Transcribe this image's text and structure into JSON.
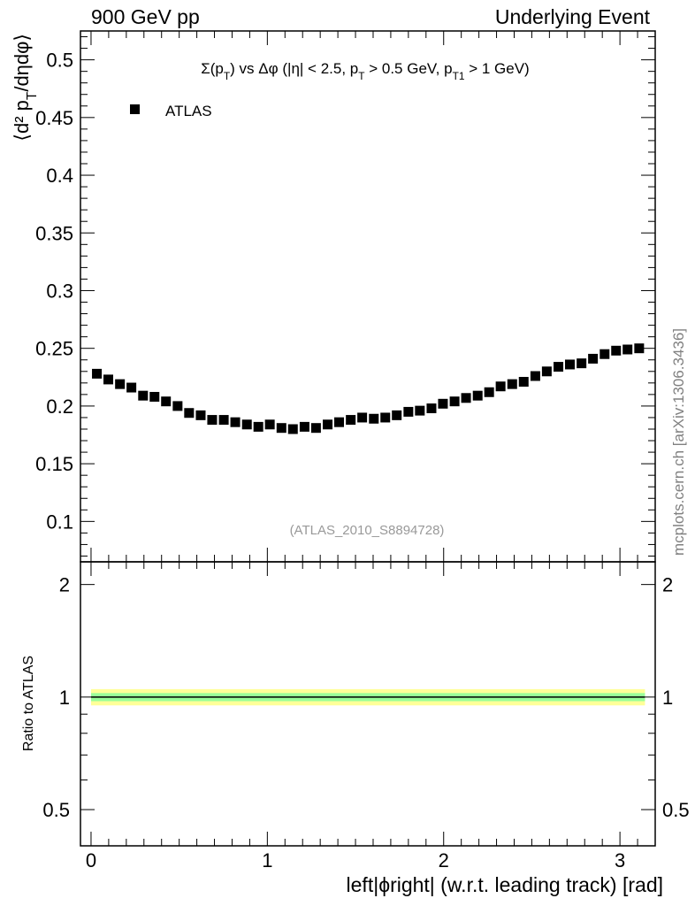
{
  "header": {
    "left": "900 GeV pp",
    "right": "Underlying Event"
  },
  "watermark": "mcplots.cern.ch [arXiv:1306.3436]",
  "chart_data": [
    {
      "type": "scatter",
      "title": "Σ(p_T) vs Δφ (|η| < 2.5, p_T > 0.5 GeV, p_T1 > 1 GeV)",
      "ylabel": "⟨d² p_T/dηdφ⟩",
      "analysis_tag": "(ATLAS_2010_S8894728)",
      "legend": {
        "position": "top-left",
        "entries": [
          "ATLAS"
        ]
      },
      "marker_color": "#000000",
      "xlim": [
        -0.06,
        3.2
      ],
      "ylim": [
        0.065,
        0.525
      ],
      "yticks": [
        0.1,
        0.15,
        0.2,
        0.25,
        0.3,
        0.35,
        0.4,
        0.45,
        0.5
      ],
      "ytick_labels": [
        "0.1",
        "0.15",
        "0.2",
        "0.25",
        "0.3",
        "0.35",
        "0.4",
        "0.45",
        "0.5"
      ],
      "series": [
        {
          "name": "ATLAS",
          "x": [
            0.033,
            0.098,
            0.164,
            0.229,
            0.295,
            0.36,
            0.425,
            0.491,
            0.556,
            0.622,
            0.687,
            0.753,
            0.818,
            0.884,
            0.949,
            1.014,
            1.08,
            1.145,
            1.211,
            1.276,
            1.342,
            1.407,
            1.473,
            1.538,
            1.604,
            1.669,
            1.734,
            1.8,
            1.865,
            1.931,
            1.996,
            2.062,
            2.127,
            2.193,
            2.258,
            2.323,
            2.389,
            2.454,
            2.52,
            2.585,
            2.651,
            2.716,
            2.782,
            2.847,
            2.913,
            2.978,
            3.043,
            3.109
          ],
          "y": [
            0.228,
            0.223,
            0.219,
            0.216,
            0.209,
            0.208,
            0.204,
            0.2,
            0.194,
            0.192,
            0.188,
            0.188,
            0.186,
            0.184,
            0.182,
            0.184,
            0.181,
            0.18,
            0.182,
            0.181,
            0.184,
            0.186,
            0.188,
            0.19,
            0.189,
            0.19,
            0.192,
            0.195,
            0.196,
            0.198,
            0.202,
            0.204,
            0.207,
            0.209,
            0.212,
            0.217,
            0.219,
            0.221,
            0.226,
            0.23,
            0.234,
            0.236,
            0.237,
            0.241,
            0.245,
            0.248,
            0.249,
            0.25
          ]
        }
      ]
    },
    {
      "type": "line",
      "ylabel": "Ratio to ATLAS",
      "xlabel": "left|ϕright| (w.r.t. leading track) [rad]",
      "xlim": [
        -0.06,
        3.2
      ],
      "ylim": [
        0.4,
        2.3
      ],
      "xticks": [
        0,
        1,
        2,
        3
      ],
      "xtick_labels": [
        "0",
        "1",
        "2",
        "3"
      ],
      "yticks": [
        0.5,
        1,
        2
      ],
      "ytick_labels": [
        "0.5",
        "1",
        "2"
      ],
      "reference_line": 1,
      "bands": [
        {
          "level": "outer",
          "color": "#ffff99",
          "lo": 0.95,
          "hi": 1.05
        },
        {
          "level": "inner",
          "color": "#99ff99",
          "lo": 0.975,
          "hi": 1.025
        }
      ]
    }
  ]
}
